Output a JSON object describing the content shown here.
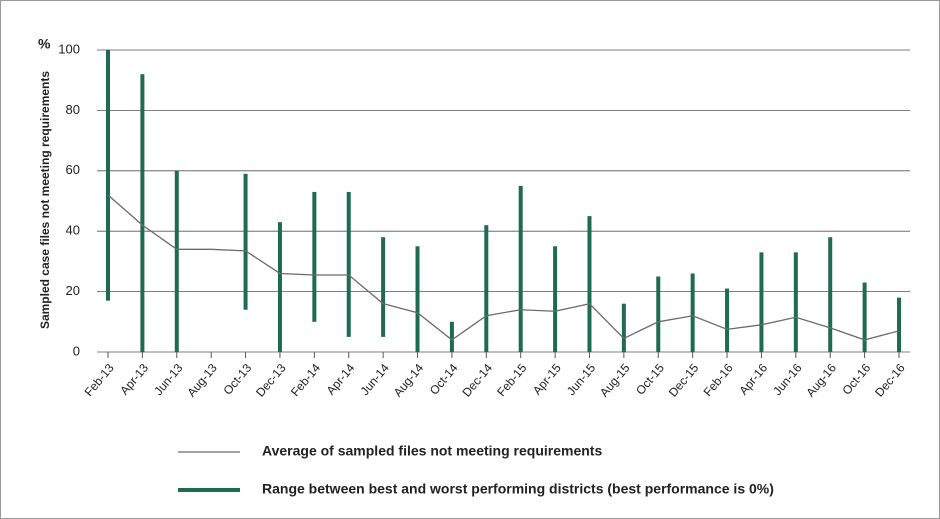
{
  "chart_data": {
    "type": "range_line",
    "y_unit": "%",
    "ylabel": "Sampled case files not meeting requirements",
    "categories": [
      "Feb-13",
      "Apr-13",
      "Jun-13",
      "Aug-13",
      "Oct-13",
      "Dec-13",
      "Feb-14",
      "Apr-14",
      "Jun-14",
      "Aug-14",
      "Oct-14",
      "Dec-14",
      "Feb-15",
      "Apr-15",
      "Jun-15",
      "Aug-15",
      "Oct-15",
      "Dec-15",
      "Feb-16",
      "Apr-16",
      "Jun-16",
      "Aug-16",
      "Oct-16",
      "Dec-16"
    ],
    "series": [
      {
        "name": "Average of sampled files not meeting requirements",
        "color": "#6b6b6b",
        "values": [
          52,
          42,
          34,
          34,
          33.5,
          26,
          25.5,
          25.5,
          16,
          13,
          4,
          12,
          14,
          13.5,
          16,
          4.5,
          10,
          12,
          7.5,
          9,
          11.5,
          8,
          4,
          7
        ]
      },
      {
        "name": "Range between best and worst performing districts (best performance is 0%)",
        "color": "#1f6b52",
        "lows": [
          17,
          0,
          0,
          null,
          14,
          0,
          10,
          5,
          5,
          0,
          0,
          0,
          0,
          0,
          0,
          0,
          0,
          0,
          0,
          0,
          0,
          0,
          0,
          0
        ],
        "highs": [
          100,
          92,
          60,
          null,
          59,
          43,
          53,
          53,
          38,
          35,
          10,
          42,
          55,
          35,
          45,
          16,
          25,
          26,
          21,
          33,
          33,
          38,
          23,
          18
        ]
      }
    ],
    "ylim": [
      0,
      100
    ],
    "yticks": [
      0,
      20,
      40,
      60,
      80,
      100
    ],
    "grid": true
  }
}
